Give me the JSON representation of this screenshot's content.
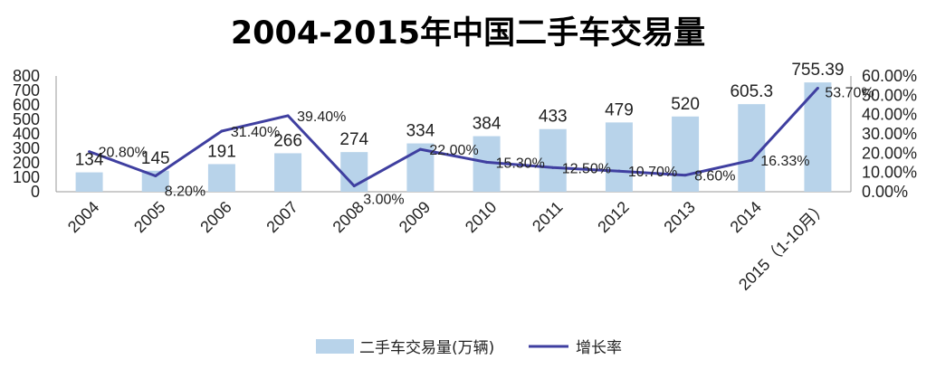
{
  "chart_data": {
    "type": "bar+line",
    "title": "2004-2015年中国二手车交易量",
    "categories": [
      "2004",
      "2005",
      "2006",
      "2007",
      "2008",
      "2009",
      "2010",
      "2011",
      "2012",
      "2013",
      "2014",
      "2015（1-10月）"
    ],
    "series": [
      {
        "name": "二手车交易量(万辆)",
        "type": "bar",
        "axis": "left",
        "color": "#b8d3ea",
        "values": [
          134,
          145,
          191,
          266,
          274,
          334,
          384,
          433,
          479,
          520,
          605.3,
          755.39
        ],
        "labels": [
          "134",
          "145",
          "191",
          "266",
          "274",
          "334",
          "384",
          "433",
          "479",
          "520",
          "605.3",
          "755.39"
        ]
      },
      {
        "name": "增长率",
        "type": "line",
        "axis": "right",
        "color": "#3f3fa0",
        "values": [
          20.8,
          8.2,
          31.4,
          39.4,
          3.0,
          22.0,
          15.3,
          12.5,
          10.7,
          8.6,
          16.33,
          53.7
        ],
        "labels": [
          "20.80%",
          "8.20%",
          "31.40%",
          "39.40%",
          "3.00%",
          "22.00%",
          "15.30%",
          "12.50%",
          "10.70%",
          "8.60%",
          "16.33%",
          "53.70%"
        ]
      }
    ],
    "y_left": {
      "min": 0,
      "max": 800,
      "ticks": [
        "0",
        "100",
        "200",
        "300",
        "400",
        "500",
        "600",
        "700",
        "800"
      ]
    },
    "y_right": {
      "min": 0,
      "max": 60,
      "ticks": [
        "0.00%",
        "10.00%",
        "20.00%",
        "30.00%",
        "40.00%",
        "50.00%",
        "60.00%"
      ]
    },
    "xlabel": "",
    "ylabel": "",
    "grid": false,
    "legend_position": "bottom"
  }
}
